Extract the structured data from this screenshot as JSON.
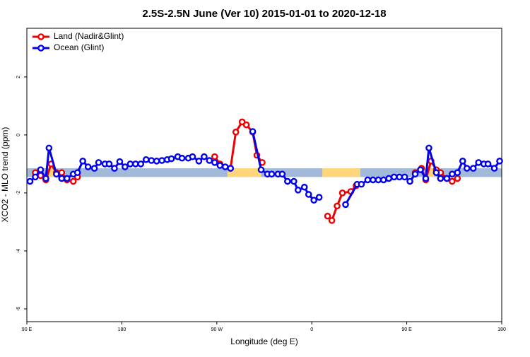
{
  "chart_data": {
    "type": "line",
    "title": "2.5S-2.5N June (Ver 10)   2015-01-01 to 2020-12-18",
    "xlabel": "Longitude (deg E)",
    "ylabel": "XCO2 - MLO trend (ppm)",
    "xlim": [
      90,
      540
    ],
    "ylim": [
      -6.44,
      3.68
    ],
    "xticks": [
      {
        "value": 90,
        "label": "90 E"
      },
      180,
      {
        "value": 270,
        "label": "90 W"
      },
      {
        "value": 360,
        "label": "0"
      },
      {
        "value": 450,
        "label": "90 E"
      },
      {
        "value": 540,
        "label": "180"
      }
    ],
    "yticks": [
      2,
      0,
      -2,
      -4,
      -6
    ],
    "legend": "topleft",
    "band": {
      "ylim": [
        -1.45,
        -1.15
      ],
      "color": "#a3b9da",
      "land_color": "#ffd77a",
      "land_ranges": [
        [
          111,
          118
        ],
        [
          280,
          312
        ],
        [
          370,
          406
        ],
        [
          470,
          476
        ]
      ]
    },
    "series": [
      {
        "name": "Land (Nadir&Glint)",
        "color": "#ee0000",
        "x": [
          98,
          103,
          108,
          113,
          118,
          123,
          128,
          134,
          138,
          200,
          268,
          273,
          283,
          288,
          294,
          298,
          304,
          308,
          313,
          340,
          375,
          379,
          384,
          389,
          397,
          402,
          420,
          458,
          464,
          468,
          473,
          478,
          482,
          488,
          493,
          498
        ],
        "values": [
          -1.3,
          -1.4,
          -1.55,
          -1.0,
          -1.3,
          -1.3,
          -1.55,
          -1.6,
          -1.45,
          null,
          -0.75,
          -1.0,
          -1.15,
          0.1,
          0.45,
          0.35,
          0.1,
          -0.7,
          -0.95,
          null,
          -2.8,
          -2.95,
          -2.45,
          -2.0,
          -1.95,
          -1.75,
          null,
          -1.3,
          -1.15,
          -1.55,
          -0.9,
          -1.2,
          -1.3,
          -1.5,
          -1.6,
          -1.5
        ]
      },
      {
        "name": "Ocean (Glint)",
        "color": "#0000ee",
        "x": [
          93,
          98,
          103,
          108,
          111,
          118,
          123,
          128,
          134,
          138,
          143,
          148,
          154,
          158,
          164,
          168,
          173,
          178,
          183,
          188,
          193,
          198,
          203,
          208,
          213,
          218,
          223,
          227,
          233,
          237,
          243,
          247,
          253,
          258,
          263,
          268,
          273,
          278,
          283,
          295,
          304,
          312,
          318,
          322,
          328,
          332,
          337,
          343,
          347,
          353,
          357,
          362,
          367,
          380,
          392,
          403,
          407,
          413,
          418,
          423,
          428,
          433,
          438,
          443,
          448,
          453,
          458,
          463,
          468,
          471,
          478,
          482,
          488,
          493,
          498,
          503,
          507,
          513,
          518,
          523,
          527,
          533,
          538
        ],
        "values": [
          -1.6,
          -1.45,
          -1.2,
          -1.5,
          -0.45,
          -1.35,
          -1.5,
          -1.5,
          -1.35,
          -1.3,
          -0.9,
          -1.1,
          -1.15,
          -0.95,
          -1.0,
          -1.0,
          -1.15,
          -0.92,
          -1.1,
          -1.0,
          -1.0,
          -1.0,
          -0.85,
          -0.88,
          -0.9,
          -0.88,
          -0.85,
          -0.82,
          -0.75,
          -0.8,
          -0.8,
          -0.75,
          -0.9,
          -0.75,
          -0.88,
          -0.95,
          -1.05,
          -1.1,
          -1.15,
          null,
          0.12,
          -1.2,
          -1.35,
          -1.35,
          -1.35,
          -1.35,
          -1.6,
          -1.6,
          -1.9,
          -1.8,
          -2.05,
          -2.25,
          -2.15,
          null,
          -2.4,
          -1.7,
          -1.7,
          -1.55,
          -1.55,
          -1.55,
          -1.55,
          -1.5,
          -1.45,
          -1.45,
          -1.45,
          -1.6,
          -1.35,
          -1.2,
          -1.5,
          -0.45,
          -1.3,
          -1.5,
          -1.5,
          -1.35,
          -1.3,
          -0.9,
          -1.15,
          -1.15,
          -0.95,
          -1.0,
          -1.0,
          -1.15,
          -0.9
        ]
      }
    ]
  }
}
